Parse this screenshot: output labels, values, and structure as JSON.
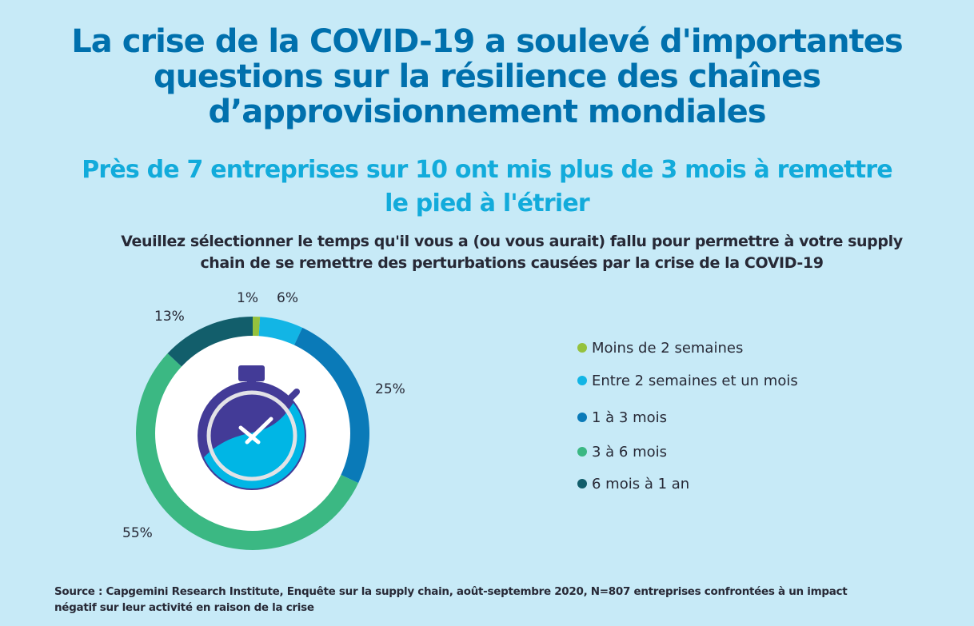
{
  "title_lines": [
    "La crise de la COVID-19 a soulevé d'importantes",
    "questions sur la résilience des chaînes",
    "d’approvisionnement mondiales"
  ],
  "subtitle_lines": [
    "Près de 7 entreprises sur 10 ont mis plus de 3 mois à remettre",
    "le pied à l'étrier"
  ],
  "question_lines": [
    "Veuillez sélectionner le temps qu'il vous a (ou vous aurait) fallu pour permettre à votre supply",
    "chain de se remettre des perturbations causées par la crise de la COVID-19"
  ],
  "center_icon": "stopwatch-icon",
  "source_lines": [
    "Source : Capgemini Research Institute, Enquête sur la supply chain, août-septembre 2020, N=807 entreprises confrontées à un impact",
    "négatif sur leur activité en raison de la crise"
  ],
  "chart_data": {
    "type": "pie",
    "subtype": "donut",
    "unit": "%",
    "categories": [
      "Moins de 2 semaines",
      "Entre 2 semaines et un mois",
      "1 à 3 mois",
      "3 à 6 mois",
      "6 mois à 1 an"
    ],
    "values": [
      1,
      6,
      25,
      55,
      13
    ],
    "labels": [
      "1%",
      "6%",
      "25%",
      "55%",
      "13%"
    ],
    "colors": [
      "#95c23d",
      "#12b5e5",
      "#0a7ab8",
      "#3bb883",
      "#125e6b"
    ],
    "legend": "right",
    "start": "top, clockwise"
  },
  "colors": {
    "background": "#c7eaf7",
    "title": "#0070ad",
    "subtitle": "#12abdb",
    "text": "#272936",
    "stopwatch_dark": "#433b97",
    "stopwatch_light": "#00b6e5"
  }
}
